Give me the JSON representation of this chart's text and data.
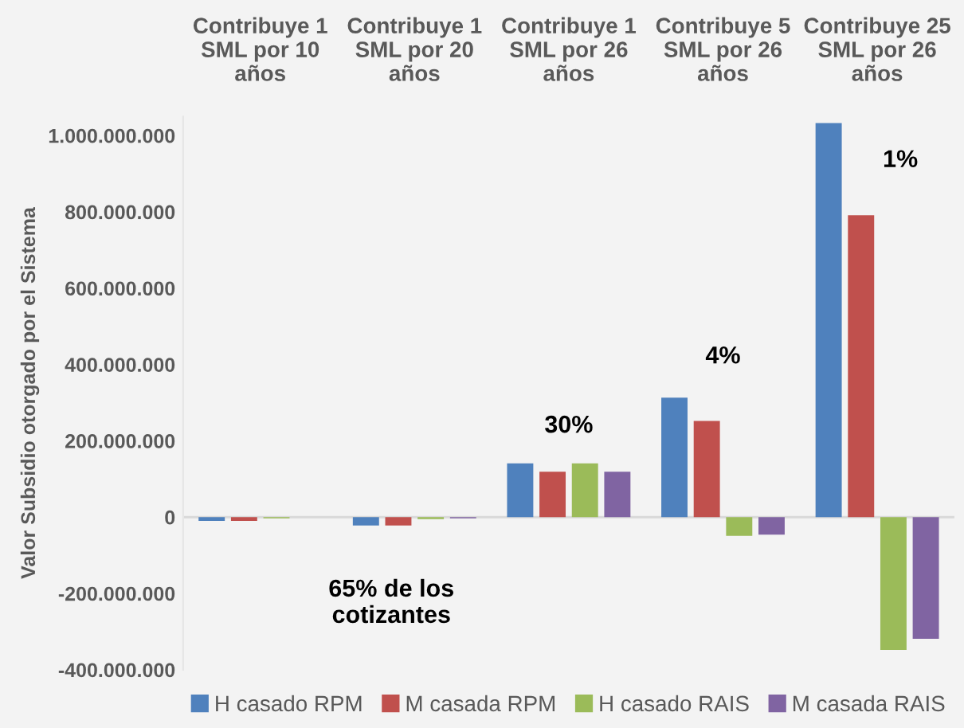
{
  "chart_data": {
    "type": "bar",
    "ylabel": "Valor Subsidio otorgado por el Sistema",
    "categories": [
      "Contribuye 1\nSML por 10\naños",
      "Contribuye 1\nSML por 20\naños",
      "Contribuye 1\nSML por 26\naños",
      "Contribuye 5\nSML por 26\naños",
      "Contribuye 25\nSML por 26\naños"
    ],
    "series": [
      {
        "name": "H casado RPM",
        "color": "#4f81bd",
        "values": [
          -10000000,
          -22000000,
          141000000,
          313000000,
          1033000000
        ]
      },
      {
        "name": "M casada RPM",
        "color": "#c0504d",
        "values": [
          -10000000,
          -22000000,
          119000000,
          252000000,
          791000000
        ]
      },
      {
        "name": "H casado RAIS",
        "color": "#9bbb59",
        "values": [
          -3000000,
          -5000000,
          141000000,
          -49000000,
          -348000000
        ]
      },
      {
        "name": "M casada RAIS",
        "color": "#8064a2",
        "values": [
          0,
          -3000000,
          119000000,
          -46000000,
          -319000000
        ]
      }
    ],
    "ylim": [
      -400000000,
      1050000000
    ],
    "yticks": [
      {
        "value": -400000000,
        "label": "-400.000.000"
      },
      {
        "value": -200000000,
        "label": "-200.000.000"
      },
      {
        "value": 0,
        "label": "0"
      },
      {
        "value": 200000000,
        "label": "200.000.000"
      },
      {
        "value": 400000000,
        "label": "400.000.000"
      },
      {
        "value": 600000000,
        "label": "600.000.000"
      },
      {
        "value": 800000000,
        "label": "800.000.000"
      },
      {
        "value": 1000000000,
        "label": "1.000.000.000"
      }
    ],
    "annotations": [
      "65% de los\ncotizantes",
      "30%",
      "4%",
      "1%"
    ],
    "ref_lines": [
      {
        "axis": "y",
        "value": 0,
        "color": "#d9d9d9"
      }
    ],
    "grid": false,
    "legend": "bottom"
  }
}
